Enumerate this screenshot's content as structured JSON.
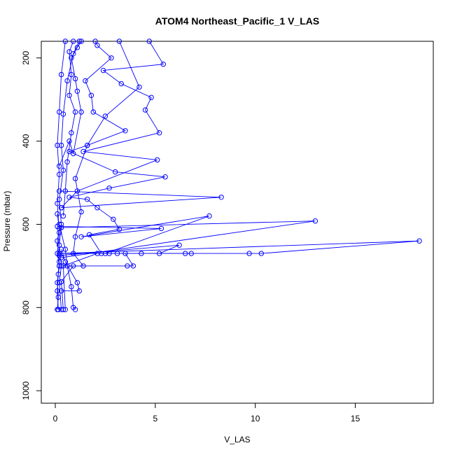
{
  "chart_data": {
    "type": "line",
    "title": "ATOM4 Northeast_Pacific_1 V_LAS",
    "xlabel": "V_LAS",
    "ylabel": "Pressure (mbar)",
    "xlim": [
      -0.7,
      18.9
    ],
    "ylim": [
      1030,
      160
    ],
    "y_inverted": true,
    "xticks": [
      0,
      5,
      10,
      15
    ],
    "yticks": [
      200,
      400,
      600,
      800,
      1000
    ],
    "grid": false,
    "legend": "none",
    "line_color": "#0000ff",
    "marker": "open-circle",
    "series": [
      {
        "values": [
          [
            0.15,
            805
          ],
          [
            0.1,
            760
          ],
          [
            0.15,
            720
          ],
          [
            0.2,
            700
          ],
          [
            0.1,
            670
          ],
          [
            0.2,
            620
          ],
          [
            0.1,
            550
          ],
          [
            0.2,
            480
          ],
          [
            0.1,
            410
          ],
          [
            0.2,
            330
          ],
          [
            0.3,
            240
          ],
          [
            0.5,
            160
          ]
        ]
      },
      {
        "values": [
          [
            0.3,
            805
          ],
          [
            0.2,
            740
          ],
          [
            0.3,
            700
          ],
          [
            0.2,
            650
          ],
          [
            0.3,
            600
          ],
          [
            0.2,
            540
          ],
          [
            0.4,
            470
          ],
          [
            0.3,
            410
          ],
          [
            0.4,
            335
          ],
          [
            0.6,
            255
          ],
          [
            0.9,
            190
          ],
          [
            1.2,
            160
          ]
        ]
      },
      {
        "values": [
          [
            0.4,
            805
          ],
          [
            0.3,
            738
          ],
          [
            0.9,
            700
          ],
          [
            1.4,
            700
          ],
          [
            0.9,
            670
          ],
          [
            1.0,
            630
          ],
          [
            1.3,
            570
          ],
          [
            1.0,
            490
          ],
          [
            1.6,
            410
          ],
          [
            2.5,
            340
          ],
          [
            4.2,
            270
          ],
          [
            3.2,
            160
          ]
        ]
      },
      {
        "values": [
          [
            0.5,
            805
          ],
          [
            0.4,
            700
          ],
          [
            2.1,
            670
          ],
          [
            4.3,
            670
          ],
          [
            2.3,
            670
          ],
          [
            1.7,
            625
          ],
          [
            3.2,
            612
          ],
          [
            2.9,
            588
          ],
          [
            2.1,
            560
          ],
          [
            1.6,
            540
          ],
          [
            0.7,
            535
          ],
          [
            2.7,
            513
          ],
          [
            5.5,
            486
          ],
          [
            3.0,
            474
          ],
          [
            0.7,
            425
          ],
          [
            1.6,
            410
          ],
          [
            3.5,
            375
          ],
          [
            1.9,
            330
          ],
          [
            1.8,
            290
          ],
          [
            1.5,
            255
          ],
          [
            2.8,
            200
          ],
          [
            2.1,
            170
          ],
          [
            2.0,
            160
          ]
        ]
      },
      {
        "values": [
          [
            0.2,
            700
          ],
          [
            3.6,
            700
          ],
          [
            3.9,
            700
          ],
          [
            3.5,
            670
          ],
          [
            2.7,
            670
          ],
          [
            2.5,
            670
          ],
          [
            7.7,
            580
          ],
          [
            1.3,
            630
          ],
          [
            5.3,
            610
          ],
          [
            0.1,
            605
          ]
        ]
      },
      {
        "values": [
          [
            0.2,
            670
          ],
          [
            9.7,
            670
          ],
          [
            10.3,
            670
          ],
          [
            18.2,
            640
          ],
          [
            0.2,
            670
          ]
        ]
      },
      {
        "values": [
          [
            0.3,
            680
          ],
          [
            13.0,
            592
          ],
          [
            0.3,
            608
          ]
        ]
      },
      {
        "values": [
          [
            0.2,
            520
          ],
          [
            8.3,
            535
          ],
          [
            0.3,
            560
          ]
        ]
      },
      {
        "values": [
          [
            0.2,
            675
          ],
          [
            6.2,
            650
          ],
          [
            5.2,
            670
          ],
          [
            6.8,
            670
          ],
          [
            6.5,
            670
          ],
          [
            3.1,
            670
          ]
        ]
      },
      {
        "values": [
          [
            0.3,
            560
          ],
          [
            1.1,
            520
          ],
          [
            5.1,
            445
          ],
          [
            1.4,
            425
          ],
          [
            5.2,
            380
          ],
          [
            4.5,
            325
          ],
          [
            4.8,
            295
          ],
          [
            3.3,
            262
          ],
          [
            2.4,
            230
          ],
          [
            5.4,
            215
          ],
          [
            4.7,
            160
          ]
        ]
      },
      {
        "values": [
          [
            0.2,
            600
          ],
          [
            0.5,
            660
          ],
          [
            0.6,
            700
          ],
          [
            0.8,
            750
          ],
          [
            0.9,
            800
          ],
          [
            1.0,
            805
          ]
        ]
      },
      {
        "values": [
          [
            0.3,
            660
          ],
          [
            0.5,
            690
          ],
          [
            1.1,
            740
          ],
          [
            1.2,
            760
          ],
          [
            0.3,
            760
          ]
        ]
      },
      {
        "values": [
          [
            0.2,
            460
          ],
          [
            0.7,
            400
          ],
          [
            0.9,
            430
          ],
          [
            1.3,
            330
          ],
          [
            1.1,
            280
          ],
          [
            1.0,
            250
          ],
          [
            0.8,
            200
          ],
          [
            1.1,
            175
          ],
          [
            1.3,
            160
          ]
        ]
      },
      {
        "values": [
          [
            0.1,
            575
          ],
          [
            0.2,
            610
          ],
          [
            0.1,
            640
          ],
          [
            0.2,
            690
          ],
          [
            0.1,
            740
          ],
          [
            0.15,
            775
          ],
          [
            0.1,
            805
          ]
        ]
      },
      {
        "values": [
          [
            0.4,
            580
          ],
          [
            0.5,
            520
          ],
          [
            0.6,
            450
          ],
          [
            0.8,
            380
          ],
          [
            1.0,
            330
          ],
          [
            0.7,
            290
          ],
          [
            0.8,
            240
          ],
          [
            0.7,
            185
          ],
          [
            0.9,
            160
          ]
        ]
      }
    ]
  }
}
